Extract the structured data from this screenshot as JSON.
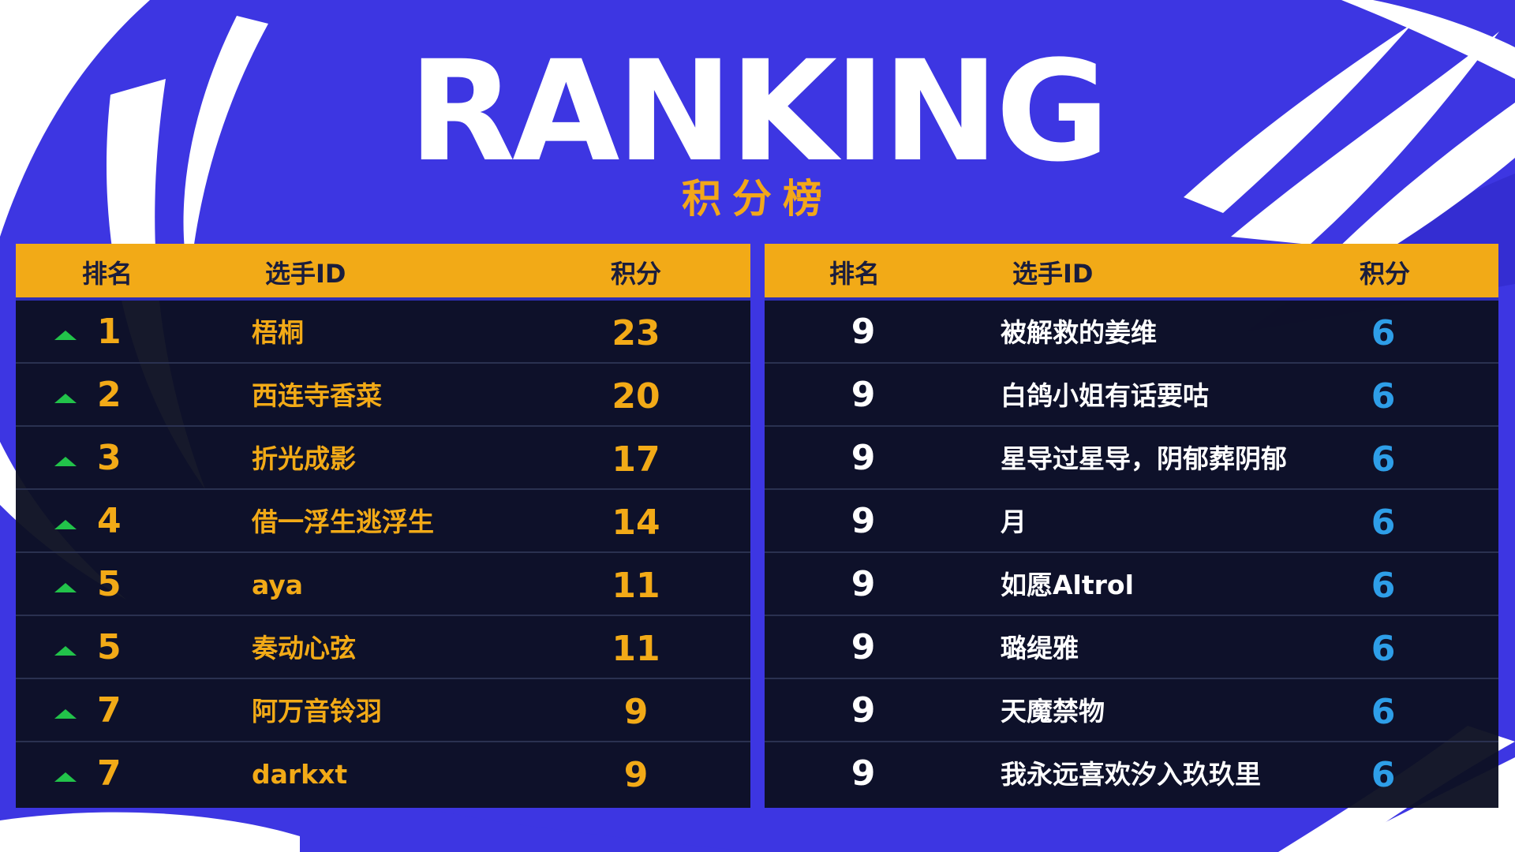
{
  "title": "RANKING",
  "subtitle": "积分榜",
  "colors": {
    "background_blue": "#3b36e0",
    "header_gold": "#f2aa17",
    "table_dark": "#0c1022",
    "accent_gold": "#f2aa17",
    "score_blue": "#2e9ee8",
    "arrow_green": "#22c34a"
  },
  "left_table": {
    "headers": {
      "rank": "排名",
      "player": "选手ID",
      "score": "积分"
    },
    "rows": [
      {
        "rank": "1",
        "player": "梧桐",
        "score": "23",
        "trend": "up-arrow-icon"
      },
      {
        "rank": "2",
        "player": "西连寺香菜",
        "score": "20",
        "trend": "up-arrow-icon"
      },
      {
        "rank": "3",
        "player": "折光成影",
        "score": "17",
        "trend": "up-arrow-icon"
      },
      {
        "rank": "4",
        "player": "借一浮生逃浮生",
        "score": "14",
        "trend": "up-arrow-icon"
      },
      {
        "rank": "5",
        "player": "aya",
        "score": "11",
        "trend": "up-arrow-icon"
      },
      {
        "rank": "5",
        "player": "奏动心弦",
        "score": "11",
        "trend": "up-arrow-icon"
      },
      {
        "rank": "7",
        "player": "阿万音铃羽",
        "score": "9",
        "trend": "up-arrow-icon"
      },
      {
        "rank": "7",
        "player": "darkxt",
        "score": "9",
        "trend": "up-arrow-icon"
      }
    ]
  },
  "right_table": {
    "headers": {
      "rank": "排名",
      "player": "选手ID",
      "score": "积分"
    },
    "rows": [
      {
        "rank": "9",
        "player": "被解救的姜维",
        "score": "6"
      },
      {
        "rank": "9",
        "player": "白鸽小姐有话要咕",
        "score": "6"
      },
      {
        "rank": "9",
        "player": "星导过星导，阴郁葬阴郁",
        "score": "6"
      },
      {
        "rank": "9",
        "player": "月",
        "score": "6"
      },
      {
        "rank": "9",
        "player": "如愿Altrol",
        "score": "6"
      },
      {
        "rank": "9",
        "player": "璐缇雅",
        "score": "6"
      },
      {
        "rank": "9",
        "player": "天魔禁物",
        "score": "6"
      },
      {
        "rank": "9",
        "player": "我永远喜欢汐入玖玖里",
        "score": "6"
      }
    ]
  }
}
